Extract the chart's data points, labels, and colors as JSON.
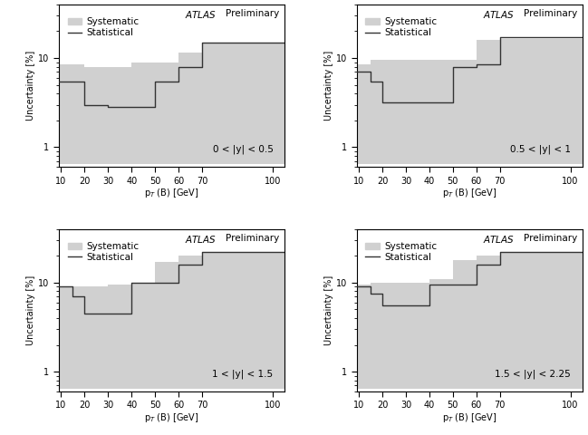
{
  "panels": [
    {
      "label": "0 < |y| < 0.5",
      "bin_edges": [
        9,
        15,
        20,
        30,
        40,
        50,
        60,
        70,
        105
      ],
      "stat": [
        5.5,
        5.5,
        3.0,
        2.8,
        2.8,
        5.5,
        8.0,
        15.0
      ],
      "syst_lo": [
        0.65,
        0.65,
        0.65,
        0.65,
        0.65,
        0.65,
        0.65,
        0.65
      ],
      "syst_hi": [
        8.5,
        8.5,
        8.0,
        8.0,
        9.0,
        9.0,
        11.5,
        14.5
      ]
    },
    {
      "label": "0.5 < |y| < 1",
      "bin_edges": [
        9,
        15,
        20,
        35,
        50,
        60,
        70,
        105
      ],
      "stat": [
        7.0,
        5.5,
        3.2,
        3.2,
        8.0,
        8.5,
        17.0
      ],
      "syst_lo": [
        0.65,
        0.65,
        0.65,
        0.65,
        0.65,
        0.65,
        0.65
      ],
      "syst_hi": [
        8.5,
        9.5,
        9.5,
        9.5,
        9.5,
        16.0,
        16.5
      ]
    },
    {
      "label": "1 < |y| < 1.5",
      "bin_edges": [
        9,
        15,
        20,
        30,
        40,
        50,
        60,
        70,
        105
      ],
      "stat": [
        9.0,
        7.0,
        4.5,
        4.5,
        10.0,
        10.0,
        16.0,
        22.0
      ],
      "syst_lo": [
        0.65,
        0.65,
        0.65,
        0.65,
        0.65,
        0.65,
        0.65,
        0.65
      ],
      "syst_hi": [
        9.0,
        9.0,
        9.0,
        9.5,
        10.0,
        17.0,
        20.0,
        22.0
      ]
    },
    {
      "label": "1.5 < |y| < 2.25",
      "bin_edges": [
        9,
        15,
        20,
        30,
        40,
        50,
        60,
        70,
        105
      ],
      "stat": [
        9.0,
        7.5,
        5.5,
        5.5,
        9.5,
        9.5,
        16.0,
        22.0
      ],
      "syst_lo": [
        0.65,
        0.65,
        0.65,
        0.65,
        0.65,
        0.65,
        0.65,
        0.65
      ],
      "syst_hi": [
        9.5,
        10.0,
        10.0,
        10.0,
        11.0,
        18.0,
        20.0,
        22.0
      ]
    }
  ],
  "ylabel": "Uncertainty [%]",
  "ylim": [
    0.6,
    40
  ],
  "xticks": [
    10,
    20,
    30,
    40,
    50,
    60,
    70,
    100
  ],
  "syst_color": "#d0d0d0",
  "stat_color": "#333333",
  "legend_syst": "Systematic",
  "legend_stat": "Statistical"
}
